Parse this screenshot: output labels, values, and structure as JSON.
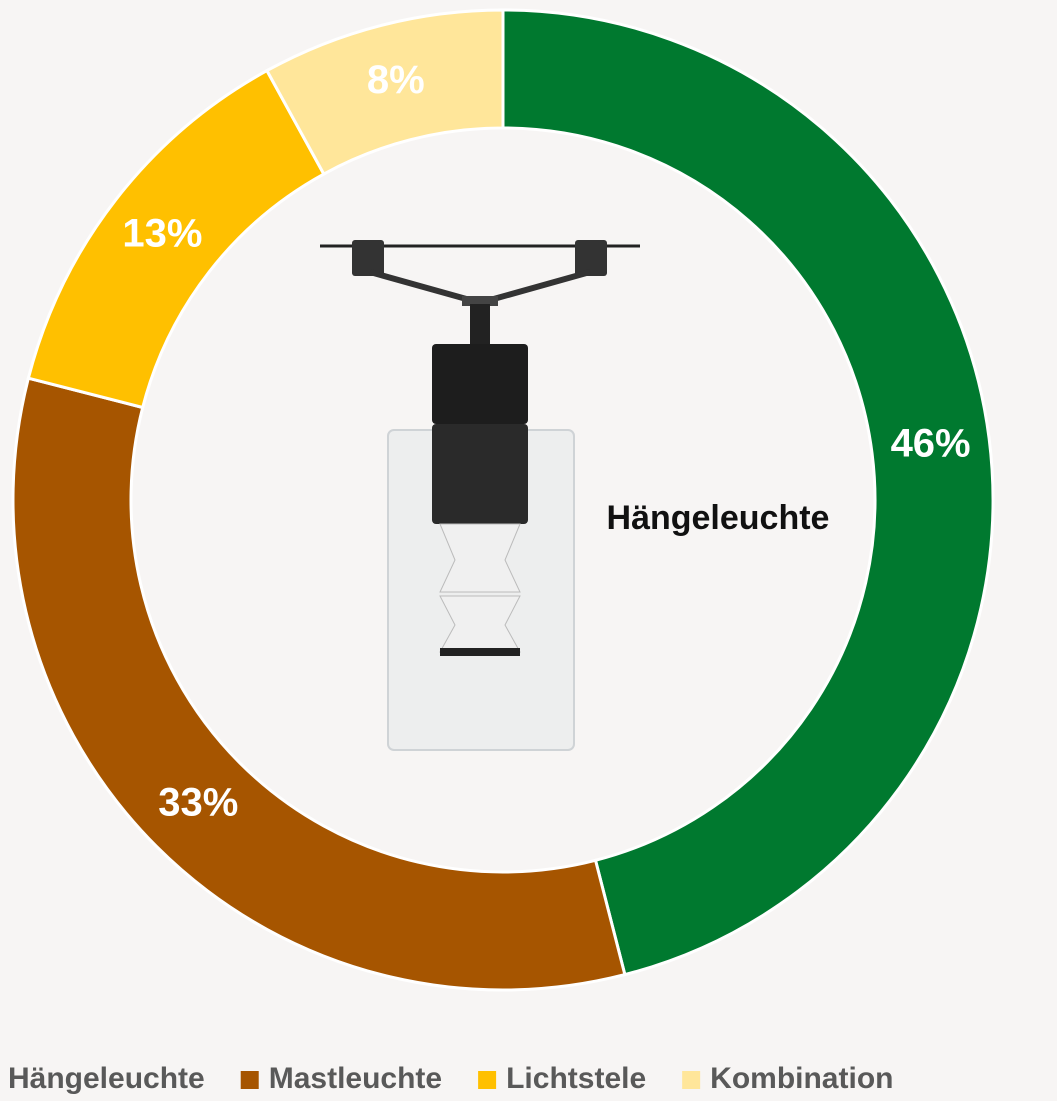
{
  "chart_data": {
    "type": "donut",
    "categories": [
      "Hängeleuchte",
      "Mastleuchte",
      "Lichtstele",
      "Kombination"
    ],
    "values": [
      46,
      33,
      13,
      8
    ],
    "value_labels": [
      "46%",
      "33%",
      "13%",
      "8%"
    ],
    "colors": [
      "#00792f",
      "#a65500",
      "#ffc000",
      "#ffe69a"
    ],
    "center_label": "Hängeleuchte",
    "legend": "bottom"
  }
}
